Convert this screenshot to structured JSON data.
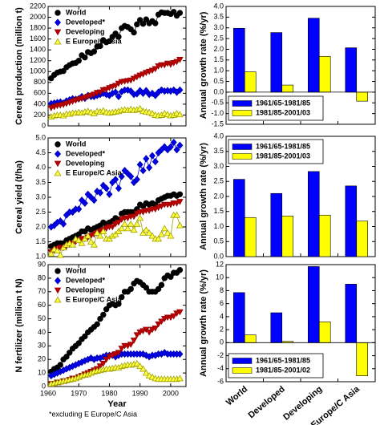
{
  "chart_data": [
    {
      "type": "line",
      "ylabel": "Cereal production (million t)",
      "xlim": [
        1960,
        2005
      ],
      "ylim": [
        0,
        2200
      ],
      "yticks": [
        0,
        200,
        400,
        600,
        800,
        1000,
        1200,
        1400,
        1600,
        1800,
        2000,
        2200
      ],
      "legend": "upper left",
      "x": [
        1961,
        1962,
        1963,
        1964,
        1965,
        1966,
        1967,
        1968,
        1969,
        1970,
        1971,
        1972,
        1973,
        1974,
        1975,
        1976,
        1977,
        1978,
        1979,
        1980,
        1981,
        1982,
        1983,
        1984,
        1985,
        1986,
        1987,
        1988,
        1989,
        1990,
        1991,
        1992,
        1993,
        1994,
        1995,
        1996,
        1997,
        1998,
        1999,
        2000,
        2001,
        2002,
        2003
      ],
      "series": [
        {
          "name": "World",
          "color": "#000000",
          "edgecolor": "#000000",
          "marker": "circle",
          "values": [
            877,
            940,
            980,
            1000,
            1010,
            1080,
            1120,
            1150,
            1160,
            1200,
            1300,
            1260,
            1360,
            1340,
            1370,
            1460,
            1470,
            1580,
            1540,
            1560,
            1640,
            1700,
            1640,
            1800,
            1840,
            1820,
            1780,
            1720,
            1870,
            1950,
            1880,
            1960,
            1890,
            1930,
            1890,
            2050,
            2090,
            2080,
            2080,
            2060,
            2100,
            2030,
            2080
          ]
        },
        {
          "name": "Developed*",
          "color": "#0000ee",
          "edgecolor": "#0000aa",
          "marker": "diamond",
          "values": [
            410,
            420,
            430,
            440,
            420,
            460,
            480,
            500,
            490,
            500,
            540,
            510,
            560,
            540,
            540,
            560,
            580,
            600,
            580,
            560,
            600,
            620,
            540,
            630,
            660,
            660,
            640,
            580,
            590,
            650,
            600,
            650,
            580,
            600,
            560,
            620,
            660,
            640,
            650,
            640,
            660,
            620,
            660
          ]
        },
        {
          "name": "Developing",
          "color": "#c00000",
          "edgecolor": "#900000",
          "marker": "triangle-down",
          "values": [
            330,
            350,
            370,
            380,
            390,
            410,
            430,
            450,
            470,
            490,
            500,
            520,
            540,
            560,
            580,
            610,
            620,
            660,
            670,
            700,
            720,
            740,
            780,
            810,
            820,
            830,
            840,
            870,
            900,
            930,
            950,
            980,
            1000,
            1020,
            1050,
            1100,
            1120,
            1120,
            1150,
            1130,
            1160,
            1180,
            1220
          ]
        },
        {
          "name": "E Europe/C Asia",
          "color": "#ffff44",
          "edgecolor": "#a0a000",
          "marker": "triangle-up",
          "values": [
            170,
            190,
            200,
            200,
            190,
            220,
            220,
            240,
            240,
            250,
            240,
            260,
            270,
            250,
            230,
            270,
            260,
            280,
            250,
            240,
            250,
            260,
            270,
            290,
            300,
            290,
            310,
            290,
            300,
            320,
            270,
            260,
            250,
            230,
            200,
            190,
            200,
            230,
            210,
            190,
            200,
            230,
            210
          ]
        }
      ]
    },
    {
      "type": "line",
      "ylabel": "Cereal yield (t/ha)",
      "xlim": [
        1960,
        2005
      ],
      "ylim": [
        1,
        5
      ],
      "yticks": [
        {
          "value": 1,
          "label": "1.0"
        },
        1.5,
        {
          "value": 2,
          "label": "2.0"
        },
        2.5,
        {
          "value": 3,
          "label": "3.0"
        },
        3.5,
        {
          "value": 4,
          "label": "4.0"
        },
        4.5,
        {
          "value": 5,
          "label": "5.0"
        }
      ],
      "legend": "upper left",
      "x": [
        1961,
        1962,
        1963,
        1964,
        1965,
        1966,
        1967,
        1968,
        1969,
        1970,
        1971,
        1972,
        1973,
        1974,
        1975,
        1976,
        1977,
        1978,
        1979,
        1980,
        1981,
        1982,
        1983,
        1984,
        1985,
        1986,
        1987,
        1988,
        1989,
        1990,
        1991,
        1992,
        1993,
        1994,
        1995,
        1996,
        1997,
        1998,
        1999,
        2000,
        2001,
        2002,
        2003
      ],
      "series": [
        {
          "name": "World",
          "color": "#000000",
          "edgecolor": "#000000",
          "marker": "circle",
          "values": [
            1.35,
            1.4,
            1.45,
            1.45,
            1.45,
            1.55,
            1.6,
            1.65,
            1.7,
            1.75,
            1.85,
            1.85,
            1.95,
            1.9,
            1.95,
            2,
            2.05,
            2.15,
            2.1,
            2.15,
            2.2,
            2.3,
            2.25,
            2.45,
            2.5,
            2.5,
            2.5,
            2.5,
            2.6,
            2.75,
            2.7,
            2.8,
            2.75,
            2.8,
            2.75,
            2.9,
            2.95,
            3,
            3.05,
            3.05,
            3.1,
            3.05,
            3.1
          ]
        },
        {
          "name": "Developed*",
          "color": "#0000ee",
          "edgecolor": "#0000aa",
          "marker": "diamond",
          "values": [
            2,
            2.05,
            2.15,
            2.2,
            2.1,
            2.4,
            2.5,
            2.5,
            2.6,
            2.6,
            2.9,
            2.8,
            3.1,
            3,
            2.9,
            3.2,
            3.15,
            3.4,
            3.3,
            3.1,
            3.5,
            3.6,
            3.3,
            3.7,
            3.9,
            3.8,
            3.7,
            3.5,
            3.6,
            4.1,
            3.9,
            4.3,
            4,
            4.4,
            4.2,
            4.5,
            4.6,
            4.7,
            4.6,
            4.7,
            4.85,
            4.6,
            4.75
          ]
        },
        {
          "name": "Developing",
          "color": "#c00000",
          "edgecolor": "#900000",
          "marker": "triangle-down",
          "values": [
            1.15,
            1.2,
            1.25,
            1.3,
            1.3,
            1.35,
            1.4,
            1.45,
            1.5,
            1.55,
            1.6,
            1.6,
            1.65,
            1.7,
            1.75,
            1.8,
            1.85,
            1.9,
            1.95,
            2,
            2,
            2.1,
            2.15,
            2.25,
            2.3,
            2.3,
            2.35,
            2.35,
            2.45,
            2.5,
            2.5,
            2.55,
            2.55,
            2.6,
            2.6,
            2.65,
            2.7,
            2.75,
            2.75,
            2.75,
            2.8,
            2.8,
            2.85
          ]
        },
        {
          "name": "E Europe/C Asia",
          "color": "#ffff44",
          "edgecolor": "#a0a000",
          "marker": "triangle-up",
          "values": [
            1.1,
            1.25,
            1.2,
            1.05,
            1.3,
            1.4,
            1.45,
            1.4,
            1.6,
            1.55,
            1.45,
            1.6,
            1.7,
            1.5,
            1.4,
            1.8,
            1.7,
            1.85,
            1.6,
            1.6,
            1.7,
            1.75,
            1.85,
            1.95,
            2.1,
            1.95,
            2.1,
            1.9,
            2.1,
            2.3,
            1.8,
            1.9,
            1.8,
            1.7,
            1.6,
            1.6,
            1.75,
            1.95,
            1.8,
            1.7,
            2.4,
            2.4,
            2.05
          ]
        }
      ]
    },
    {
      "type": "line",
      "ylabel": "N fertilizer (million t N)",
      "xlabel": "Year",
      "note": "*excluding E Europe/C Asia",
      "xlim": [
        1960,
        2005
      ],
      "xticks": [
        1960,
        1970,
        1980,
        1990,
        2000
      ],
      "ylim": [
        0,
        90
      ],
      "yticks": [
        0,
        10,
        20,
        30,
        40,
        50,
        60,
        70,
        80,
        90
      ],
      "legend": "upper left",
      "x": [
        1961,
        1962,
        1963,
        1964,
        1965,
        1966,
        1967,
        1968,
        1969,
        1970,
        1971,
        1972,
        1973,
        1974,
        1975,
        1976,
        1977,
        1978,
        1979,
        1980,
        1981,
        1982,
        1983,
        1984,
        1985,
        1986,
        1987,
        1988,
        1989,
        1990,
        1991,
        1992,
        1993,
        1994,
        1995,
        1996,
        1997,
        1998,
        1999,
        2000,
        2001,
        2002,
        2003
      ],
      "series": [
        {
          "name": "World",
          "color": "#000000",
          "edgecolor": "#000000",
          "marker": "circle",
          "values": [
            11,
            13,
            14,
            16,
            20,
            22,
            25,
            28,
            30,
            32,
            35,
            37,
            40,
            42,
            44,
            46,
            50,
            53,
            57,
            60,
            61,
            60,
            61,
            66,
            70,
            70,
            72,
            76,
            78,
            77,
            75,
            73,
            70,
            70,
            70,
            72,
            75,
            80,
            82,
            81,
            84,
            84,
            86
          ]
        },
        {
          "name": "Developed*",
          "color": "#0000ee",
          "edgecolor": "#0000aa",
          "marker": "diamond",
          "values": [
            8,
            9,
            10,
            11,
            12,
            13,
            14,
            15,
            16,
            17,
            18,
            19,
            20,
            21,
            20,
            21,
            21,
            22,
            23,
            23,
            23,
            22,
            23,
            24,
            24,
            24,
            24,
            24,
            24,
            24,
            24,
            23,
            22,
            23,
            23,
            24,
            24,
            25,
            24,
            24,
            24,
            24,
            24
          ]
        },
        {
          "name": "Developing",
          "color": "#c00000",
          "edgecolor": "#900000",
          "marker": "triangle-down",
          "values": [
            2,
            2,
            3,
            3,
            4,
            4,
            5,
            6,
            6,
            7,
            8,
            9,
            10,
            11,
            12,
            13,
            15,
            17,
            20,
            22,
            23,
            24,
            25,
            28,
            30,
            30,
            31,
            34,
            38,
            40,
            41,
            42,
            40,
            42,
            43,
            46,
            48,
            50,
            51,
            51,
            52,
            54,
            55
          ]
        },
        {
          "name": "E Europe/C Asia",
          "color": "#ffff44",
          "edgecolor": "#a0a000",
          "marker": "triangle-up",
          "values": [
            2,
            2.5,
            3,
            3.5,
            4,
            4.5,
            5,
            5.5,
            6,
            7,
            8,
            8.5,
            9,
            10,
            11,
            11.5,
            12,
            12.5,
            13,
            13,
            13.5,
            14,
            14,
            15,
            15.5,
            16,
            16,
            16.5,
            17,
            15,
            13,
            10,
            8,
            7,
            6,
            5.5,
            5.5,
            5.5,
            5.5,
            5.5,
            5.5,
            5.5,
            6
          ]
        }
      ]
    },
    {
      "type": "bar",
      "ylabel": "Annual growth rate (%/yr)",
      "ylim": [
        -1.5,
        4
      ],
      "yticks": [
        -1.5,
        {
          "value": -1,
          "label": "-1.0"
        },
        -0.5,
        {
          "value": 0,
          "label": "0.0"
        },
        0.5,
        {
          "value": 1,
          "label": "1.0"
        },
        1.5,
        {
          "value": 2,
          "label": "2.0"
        },
        2.5,
        {
          "value": 3,
          "label": "3.0"
        },
        3.5,
        {
          "value": 4,
          "label": "4.0"
        }
      ],
      "legend": "lower left",
      "series": [
        {
          "name": "1961/65-1981/85",
          "color": "#0000ff",
          "values": [
            2.98,
            2.78,
            3.45,
            2.07
          ]
        },
        {
          "name": "1981/85-2001/03",
          "color": "#ffff00",
          "values": [
            0.95,
            0.33,
            1.67,
            -0.42
          ]
        }
      ]
    },
    {
      "type": "bar",
      "ylabel": "Annual growth rate (%/yr)",
      "ylim": [
        0,
        4
      ],
      "yticks": [
        {
          "value": 0,
          "label": "0.0"
        },
        0.5,
        {
          "value": 1,
          "label": "1.0"
        },
        1.5,
        {
          "value": 2,
          "label": "2.0"
        },
        2.5,
        {
          "value": 3,
          "label": "3.0"
        },
        3.5,
        {
          "value": 4,
          "label": "4.0"
        }
      ],
      "legend": "upper left",
      "series": [
        {
          "name": "1961/65-1981/85",
          "color": "#0000ff",
          "values": [
            2.57,
            2.1,
            2.83,
            2.35
          ]
        },
        {
          "name": "1981/85-2001/03",
          "color": "#ffff00",
          "values": [
            1.3,
            1.35,
            1.38,
            1.18
          ]
        }
      ]
    },
    {
      "type": "bar",
      "ylabel": "Annual growth rate (%/yr)",
      "ylim": [
        -6,
        12
      ],
      "yticks": [
        -6,
        -4,
        -2,
        0,
        2,
        4,
        6,
        8,
        10,
        12
      ],
      "legend": "lower left",
      "categories": [
        "World",
        "Developed",
        "Developing",
        "E Europe/C Asia"
      ],
      "series": [
        {
          "name": "1961/65-1981/85",
          "color": "#0000ff",
          "values": [
            7.7,
            4.6,
            11.7,
            9.0
          ]
        },
        {
          "name": "1981/85-2001/02",
          "color": "#ffff00",
          "values": [
            1.2,
            0.2,
            3.2,
            -5.1
          ]
        }
      ]
    }
  ]
}
